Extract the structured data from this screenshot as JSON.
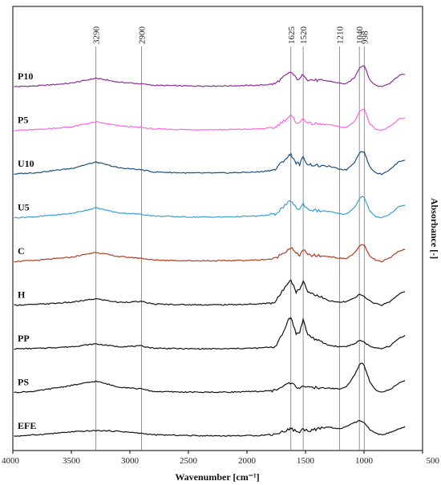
{
  "chart_data": {
    "type": "line",
    "xlabel": "Wavenumber [cm⁻¹]",
    "ylabel": "Absorbance [-]",
    "xlim": [
      4000,
      500
    ],
    "x_ticks": [
      4000,
      3500,
      3000,
      2500,
      2000,
      1500,
      1000,
      500
    ],
    "grid": false,
    "marker_lines": [
      3290,
      2900,
      1625,
      1520,
      1210,
      1040,
      998
    ],
    "series": [
      {
        "name": "P10",
        "color": "#8e2b9b",
        "offset": 8,
        "points": [
          [
            3990,
            0.02
          ],
          [
            3800,
            0.04
          ],
          [
            3500,
            0.12
          ],
          [
            3290,
            0.26
          ],
          [
            3100,
            0.15
          ],
          [
            2900,
            0.1
          ],
          [
            2800,
            0.06
          ],
          [
            2500,
            0.04
          ],
          [
            2200,
            0.04
          ],
          [
            1900,
            0.06
          ],
          [
            1760,
            0.1
          ],
          [
            1700,
            0.26
          ],
          [
            1640,
            0.4
          ],
          [
            1625,
            0.44
          ],
          [
            1580,
            0.26
          ],
          [
            1550,
            0.22
          ],
          [
            1520,
            0.38
          ],
          [
            1480,
            0.22
          ],
          [
            1400,
            0.2
          ],
          [
            1300,
            0.18
          ],
          [
            1210,
            0.12
          ],
          [
            1150,
            0.1
          ],
          [
            1080,
            0.28
          ],
          [
            1040,
            0.55
          ],
          [
            1020,
            0.6
          ],
          [
            998,
            0.62
          ],
          [
            980,
            0.48
          ],
          [
            950,
            0.2
          ],
          [
            900,
            0.06
          ],
          [
            850,
            0.02
          ],
          [
            780,
            0.12
          ],
          [
            700,
            0.34
          ],
          [
            650,
            0.38
          ]
        ]
      },
      {
        "name": "P5",
        "color": "#ff66e0",
        "offset": 7,
        "points": [
          [
            3990,
            0.02
          ],
          [
            3800,
            0.04
          ],
          [
            3500,
            0.12
          ],
          [
            3290,
            0.26
          ],
          [
            3100,
            0.15
          ],
          [
            2900,
            0.1
          ],
          [
            2800,
            0.06
          ],
          [
            2500,
            0.04
          ],
          [
            2200,
            0.04
          ],
          [
            1900,
            0.06
          ],
          [
            1760,
            0.1
          ],
          [
            1700,
            0.26
          ],
          [
            1640,
            0.4
          ],
          [
            1625,
            0.44
          ],
          [
            1580,
            0.26
          ],
          [
            1550,
            0.22
          ],
          [
            1520,
            0.38
          ],
          [
            1480,
            0.22
          ],
          [
            1400,
            0.2
          ],
          [
            1300,
            0.18
          ],
          [
            1210,
            0.12
          ],
          [
            1150,
            0.1
          ],
          [
            1080,
            0.28
          ],
          [
            1040,
            0.55
          ],
          [
            1020,
            0.6
          ],
          [
            998,
            0.62
          ],
          [
            980,
            0.48
          ],
          [
            950,
            0.2
          ],
          [
            900,
            0.06
          ],
          [
            850,
            0.02
          ],
          [
            780,
            0.12
          ],
          [
            700,
            0.34
          ],
          [
            650,
            0.38
          ]
        ]
      },
      {
        "name": "U10",
        "color": "#1b4f80",
        "offset": 6,
        "points": [
          [
            3990,
            0.02
          ],
          [
            3800,
            0.06
          ],
          [
            3500,
            0.18
          ],
          [
            3290,
            0.36
          ],
          [
            3100,
            0.2
          ],
          [
            2900,
            0.14
          ],
          [
            2800,
            0.08
          ],
          [
            2500,
            0.05
          ],
          [
            2200,
            0.05
          ],
          [
            1900,
            0.08
          ],
          [
            1760,
            0.14
          ],
          [
            1700,
            0.36
          ],
          [
            1640,
            0.54
          ],
          [
            1625,
            0.58
          ],
          [
            1580,
            0.34
          ],
          [
            1550,
            0.3
          ],
          [
            1520,
            0.5
          ],
          [
            1480,
            0.3
          ],
          [
            1400,
            0.26
          ],
          [
            1300,
            0.24
          ],
          [
            1210,
            0.16
          ],
          [
            1150,
            0.14
          ],
          [
            1080,
            0.36
          ],
          [
            1040,
            0.62
          ],
          [
            1020,
            0.66
          ],
          [
            998,
            0.64
          ],
          [
            980,
            0.48
          ],
          [
            950,
            0.22
          ],
          [
            900,
            0.06
          ],
          [
            850,
            0.02
          ],
          [
            780,
            0.14
          ],
          [
            700,
            0.38
          ],
          [
            650,
            0.42
          ]
        ]
      },
      {
        "name": "U5",
        "color": "#3a9fd8",
        "offset": 5,
        "points": [
          [
            3990,
            0.02
          ],
          [
            3800,
            0.05
          ],
          [
            3500,
            0.14
          ],
          [
            3290,
            0.3
          ],
          [
            3100,
            0.16
          ],
          [
            2900,
            0.12
          ],
          [
            2800,
            0.07
          ],
          [
            2500,
            0.04
          ],
          [
            2200,
            0.04
          ],
          [
            1900,
            0.07
          ],
          [
            1760,
            0.12
          ],
          [
            1700,
            0.3
          ],
          [
            1640,
            0.46
          ],
          [
            1625,
            0.5
          ],
          [
            1580,
            0.3
          ],
          [
            1550,
            0.26
          ],
          [
            1520,
            0.42
          ],
          [
            1480,
            0.26
          ],
          [
            1400,
            0.22
          ],
          [
            1300,
            0.2
          ],
          [
            1210,
            0.13
          ],
          [
            1150,
            0.12
          ],
          [
            1080,
            0.32
          ],
          [
            1040,
            0.56
          ],
          [
            1020,
            0.62
          ],
          [
            998,
            0.6
          ],
          [
            980,
            0.44
          ],
          [
            950,
            0.2
          ],
          [
            900,
            0.06
          ],
          [
            850,
            0.02
          ],
          [
            780,
            0.12
          ],
          [
            700,
            0.34
          ],
          [
            650,
            0.38
          ]
        ]
      },
      {
        "name": "C",
        "color": "#b33a1e",
        "offset": 4,
        "points": [
          [
            3990,
            0.02
          ],
          [
            3800,
            0.05
          ],
          [
            3500,
            0.14
          ],
          [
            3290,
            0.28
          ],
          [
            3100,
            0.16
          ],
          [
            2900,
            0.11
          ],
          [
            2800,
            0.06
          ],
          [
            2500,
            0.04
          ],
          [
            2200,
            0.04
          ],
          [
            1900,
            0.06
          ],
          [
            1760,
            0.1
          ],
          [
            1700,
            0.24
          ],
          [
            1640,
            0.38
          ],
          [
            1625,
            0.42
          ],
          [
            1580,
            0.24
          ],
          [
            1550,
            0.2
          ],
          [
            1520,
            0.36
          ],
          [
            1480,
            0.2
          ],
          [
            1400,
            0.18
          ],
          [
            1300,
            0.16
          ],
          [
            1210,
            0.11
          ],
          [
            1150,
            0.1
          ],
          [
            1080,
            0.26
          ],
          [
            1040,
            0.44
          ],
          [
            1020,
            0.5
          ],
          [
            998,
            0.48
          ],
          [
            980,
            0.36
          ],
          [
            950,
            0.16
          ],
          [
            900,
            0.05
          ],
          [
            850,
            0.02
          ],
          [
            780,
            0.12
          ],
          [
            700,
            0.32
          ],
          [
            650,
            0.36
          ]
        ]
      },
      {
        "name": "H",
        "color": "#111111",
        "offset": 3,
        "points": [
          [
            3990,
            0.02
          ],
          [
            3800,
            0.04
          ],
          [
            3500,
            0.1
          ],
          [
            3290,
            0.2
          ],
          [
            3100,
            0.1
          ],
          [
            2900,
            0.12
          ],
          [
            2800,
            0.05
          ],
          [
            2500,
            0.03
          ],
          [
            2200,
            0.03
          ],
          [
            1900,
            0.05
          ],
          [
            1760,
            0.1
          ],
          [
            1700,
            0.4
          ],
          [
            1640,
            0.72
          ],
          [
            1625,
            0.74
          ],
          [
            1580,
            0.4
          ],
          [
            1550,
            0.46
          ],
          [
            1520,
            0.72
          ],
          [
            1480,
            0.4
          ],
          [
            1400,
            0.3
          ],
          [
            1300,
            0.14
          ],
          [
            1210,
            0.1
          ],
          [
            1150,
            0.12
          ],
          [
            1080,
            0.22
          ],
          [
            1040,
            0.32
          ],
          [
            1020,
            0.3
          ],
          [
            998,
            0.26
          ],
          [
            980,
            0.22
          ],
          [
            950,
            0.14
          ],
          [
            900,
            0.06
          ],
          [
            850,
            0.02
          ],
          [
            780,
            0.12
          ],
          [
            700,
            0.34
          ],
          [
            650,
            0.4
          ]
        ]
      },
      {
        "name": "PP",
        "color": "#111111",
        "offset": 2,
        "points": [
          [
            3990,
            0.02
          ],
          [
            3800,
            0.03
          ],
          [
            3500,
            0.08
          ],
          [
            3290,
            0.16
          ],
          [
            3100,
            0.08
          ],
          [
            2900,
            0.1
          ],
          [
            2800,
            0.04
          ],
          [
            2500,
            0.02
          ],
          [
            2200,
            0.02
          ],
          [
            1900,
            0.04
          ],
          [
            1760,
            0.08
          ],
          [
            1700,
            0.4
          ],
          [
            1640,
            0.9
          ],
          [
            1625,
            0.92
          ],
          [
            1580,
            0.44
          ],
          [
            1550,
            0.5
          ],
          [
            1520,
            0.84
          ],
          [
            1480,
            0.42
          ],
          [
            1400,
            0.26
          ],
          [
            1300,
            0.12
          ],
          [
            1210,
            0.08
          ],
          [
            1150,
            0.09
          ],
          [
            1080,
            0.16
          ],
          [
            1040,
            0.26
          ],
          [
            1020,
            0.24
          ],
          [
            998,
            0.2
          ],
          [
            980,
            0.16
          ],
          [
            950,
            0.1
          ],
          [
            900,
            0.04
          ],
          [
            850,
            0.02
          ],
          [
            780,
            0.1
          ],
          [
            700,
            0.32
          ],
          [
            650,
            0.4
          ]
        ]
      },
      {
        "name": "PS",
        "color": "#111111",
        "offset": 1,
        "points": [
          [
            3990,
            0.02
          ],
          [
            3800,
            0.06
          ],
          [
            3500,
            0.22
          ],
          [
            3290,
            0.34
          ],
          [
            3100,
            0.18
          ],
          [
            2900,
            0.12
          ],
          [
            2800,
            0.05
          ],
          [
            2500,
            0.03
          ],
          [
            2200,
            0.03
          ],
          [
            1900,
            0.05
          ],
          [
            1760,
            0.08
          ],
          [
            1700,
            0.18
          ],
          [
            1640,
            0.28
          ],
          [
            1625,
            0.3
          ],
          [
            1580,
            0.18
          ],
          [
            1550,
            0.16
          ],
          [
            1520,
            0.22
          ],
          [
            1480,
            0.15
          ],
          [
            1400,
            0.16
          ],
          [
            1300,
            0.14
          ],
          [
            1210,
            0.12
          ],
          [
            1150,
            0.18
          ],
          [
            1080,
            0.52
          ],
          [
            1040,
            0.8
          ],
          [
            1020,
            0.86
          ],
          [
            998,
            0.78
          ],
          [
            980,
            0.6
          ],
          [
            950,
            0.32
          ],
          [
            900,
            0.1
          ],
          [
            850,
            0.03
          ],
          [
            780,
            0.1
          ],
          [
            700,
            0.28
          ],
          [
            650,
            0.36
          ]
        ]
      },
      {
        "name": "EFE",
        "color": "#111111",
        "offset": 0,
        "points": [
          [
            3990,
            0.02
          ],
          [
            3800,
            0.06
          ],
          [
            3500,
            0.14
          ],
          [
            3290,
            0.18
          ],
          [
            3100,
            0.16
          ],
          [
            2900,
            0.1
          ],
          [
            2800,
            0.06
          ],
          [
            2500,
            0.04
          ],
          [
            2200,
            0.03
          ],
          [
            1900,
            0.04
          ],
          [
            1760,
            0.08
          ],
          [
            1700,
            0.14
          ],
          [
            1640,
            0.22
          ],
          [
            1625,
            0.24
          ],
          [
            1580,
            0.16
          ],
          [
            1550,
            0.14
          ],
          [
            1520,
            0.22
          ],
          [
            1480,
            0.18
          ],
          [
            1400,
            0.22
          ],
          [
            1300,
            0.28
          ],
          [
            1210,
            0.22
          ],
          [
            1150,
            0.3
          ],
          [
            1080,
            0.4
          ],
          [
            1040,
            0.46
          ],
          [
            1020,
            0.44
          ],
          [
            998,
            0.4
          ],
          [
            980,
            0.32
          ],
          [
            950,
            0.2
          ],
          [
            900,
            0.1
          ],
          [
            850,
            0.06
          ],
          [
            780,
            0.12
          ],
          [
            700,
            0.22
          ],
          [
            650,
            0.28
          ]
        ]
      }
    ]
  }
}
